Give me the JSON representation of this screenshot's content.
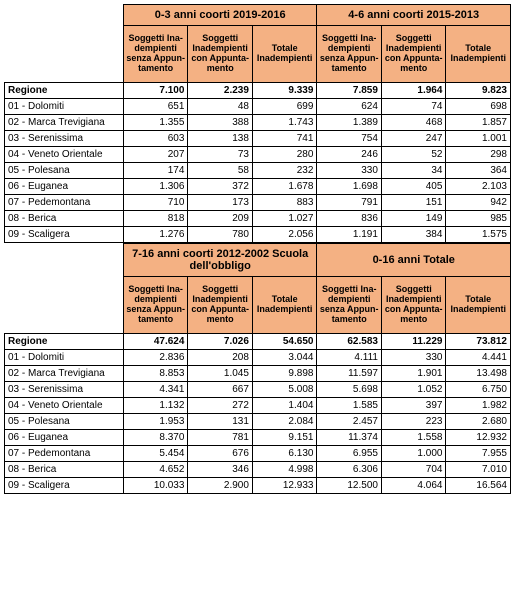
{
  "region_label": "Regione",
  "row_labels": [
    "01 - Dolomiti",
    "02 - Marca Trevigiana",
    "03 - Serenissima",
    "04 - Veneto Orientale",
    "05 - Polesana",
    "06 - Euganea",
    "07 - Pedemontana",
    "08 - Berica",
    "09 - Scaligera"
  ],
  "sub_headers": [
    "Soggetti Ina-dempienti senza Appun-tamento",
    "Soggetti Inadempienti con Appunta-mento",
    "Totale Inadempienti"
  ],
  "tables": [
    {
      "groups": [
        "0-3 anni coorti 2019-2016",
        "4-6 anni coorti 2015-2013"
      ],
      "region_row": [
        "7.100",
        "2.239",
        "9.339",
        "7.859",
        "1.964",
        "9.823"
      ],
      "rows": [
        [
          "651",
          "48",
          "699",
          "624",
          "74",
          "698"
        ],
        [
          "1.355",
          "388",
          "1.743",
          "1.389",
          "468",
          "1.857"
        ],
        [
          "603",
          "138",
          "741",
          "754",
          "247",
          "1.001"
        ],
        [
          "207",
          "73",
          "280",
          "246",
          "52",
          "298"
        ],
        [
          "174",
          "58",
          "232",
          "330",
          "34",
          "364"
        ],
        [
          "1.306",
          "372",
          "1.678",
          "1.698",
          "405",
          "2.103"
        ],
        [
          "710",
          "173",
          "883",
          "791",
          "151",
          "942"
        ],
        [
          "818",
          "209",
          "1.027",
          "836",
          "149",
          "985"
        ],
        [
          "1.276",
          "780",
          "2.056",
          "1.191",
          "384",
          "1.575"
        ]
      ]
    },
    {
      "groups": [
        "7-16 anni coorti 2012-2002 Scuola dell'obbligo",
        "0-16 anni Totale"
      ],
      "region_row": [
        "47.624",
        "7.026",
        "54.650",
        "62.583",
        "11.229",
        "73.812"
      ],
      "rows": [
        [
          "2.836",
          "208",
          "3.044",
          "4.111",
          "330",
          "4.441"
        ],
        [
          "8.853",
          "1.045",
          "9.898",
          "11.597",
          "1.901",
          "13.498"
        ],
        [
          "4.341",
          "667",
          "5.008",
          "5.698",
          "1.052",
          "6.750"
        ],
        [
          "1.132",
          "272",
          "1.404",
          "1.585",
          "397",
          "1.982"
        ],
        [
          "1.953",
          "131",
          "2.084",
          "2.457",
          "223",
          "2.680"
        ],
        [
          "8.370",
          "781",
          "9.151",
          "11.374",
          "1.558",
          "12.932"
        ],
        [
          "5.454",
          "676",
          "6.130",
          "6.955",
          "1.000",
          "7.955"
        ],
        [
          "4.652",
          "346",
          "4.998",
          "6.306",
          "704",
          "7.010"
        ],
        [
          "10.033",
          "2.900",
          "12.933",
          "12.500",
          "4.064",
          "16.564"
        ]
      ]
    }
  ],
  "col_widths": {
    "label": "118px",
    "data": "64px"
  }
}
